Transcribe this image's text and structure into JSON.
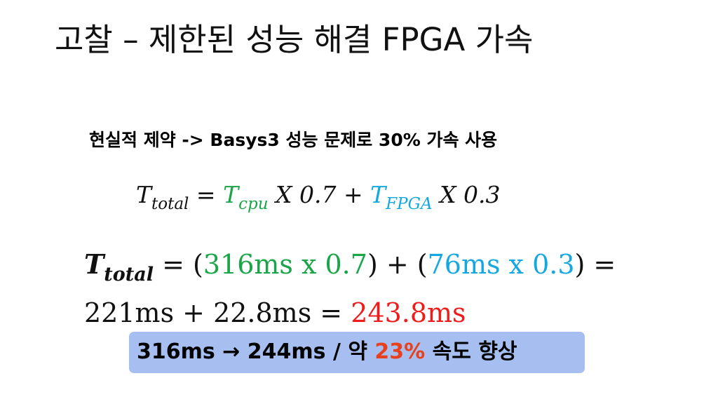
{
  "slide": {
    "title": "고찰 – 제한된 성능 해결 FPGA 가속",
    "subtitle": "현실적 제약 -> Basys3 성능 문제로 30% 가속 사용",
    "formula1": {
      "lhs_main": "T",
      "lhs_sub": "total",
      "equals": "=",
      "term1_main": "T",
      "term1_sub": "cpu",
      "term1_factor": "X 0.7",
      "plus": "+",
      "term2_main": "T",
      "term2_sub": "FPGA",
      "term2_factor": "X 0.3"
    },
    "formula2": {
      "lhs_main": "T",
      "lhs_sub": "total",
      "equals_open": "= (",
      "cpu_part": "316ms x 0.7",
      "mid": ") + (",
      "fpga_part": "76ms x 0.3",
      "close": ") =",
      "line2_prefix": "221ms + 22.8ms =",
      "result": "243.8ms"
    },
    "result": {
      "prefix": "316ms → 244ms / 약",
      "percent": "23%",
      "suffix": "속도 향상"
    },
    "colors": {
      "cpu": "#1aa548",
      "fpga": "#15a8e0",
      "result": "#ee1c1c",
      "percent": "#e8401c",
      "box": "#a6bff0"
    }
  }
}
